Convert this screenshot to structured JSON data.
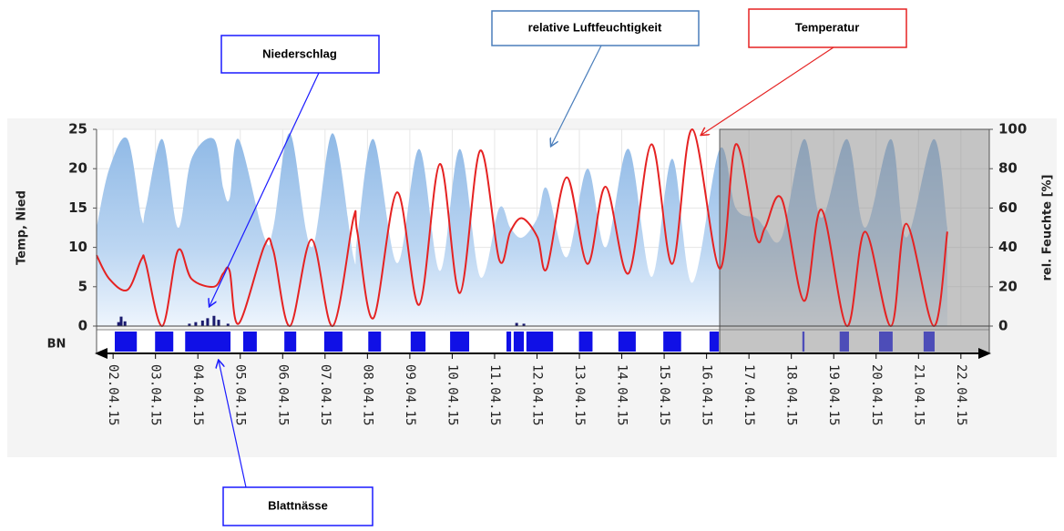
{
  "chart_data": {
    "type": "line",
    "y_label": "Temp, Nied",
    "y2_label": "rel. Feuchte [%]",
    "strip_label": "BN",
    "xlim": [
      -0.39,
      20.67
    ],
    "xticks": [
      {
        "value": 0,
        "label": "02.04.15"
      },
      {
        "value": 1,
        "label": "03.04.15"
      },
      {
        "value": 2,
        "label": "04.04.15"
      },
      {
        "value": 3,
        "label": "05.04.15"
      },
      {
        "value": 4,
        "label": "06.04.15"
      },
      {
        "value": 5,
        "label": "07.04.15"
      },
      {
        "value": 6,
        "label": "08.04.15"
      },
      {
        "value": 7,
        "label": "09.04.15"
      },
      {
        "value": 8,
        "label": "10.04.15"
      },
      {
        "value": 9,
        "label": "11.04.15"
      },
      {
        "value": 10,
        "label": "12.04.15"
      },
      {
        "value": 11,
        "label": "13.04.15"
      },
      {
        "value": 12,
        "label": "14.04.15"
      },
      {
        "value": 13,
        "label": "15.04.15"
      },
      {
        "value": 14,
        "label": "16.04.15"
      },
      {
        "value": 15,
        "label": "17.04.15"
      },
      {
        "value": 16,
        "label": "18.04.15"
      },
      {
        "value": 17,
        "label": "19.04.15"
      },
      {
        "value": 18,
        "label": "20.04.15"
      },
      {
        "value": 19,
        "label": "21.04.15"
      },
      {
        "value": 20,
        "label": "22.04.15"
      }
    ],
    "ylim": [
      0,
      25
    ],
    "yticks": [
      0,
      5,
      10,
      15,
      20,
      25
    ],
    "y2lim": [
      0,
      100
    ],
    "y2ticks": [
      0,
      20,
      40,
      60,
      80,
      100
    ],
    "grid": true,
    "shaded_x": [
      14.31,
      20.67
    ],
    "x": [
      -0.39,
      -0.09,
      0.34,
      0.67,
      0.77,
      1.16,
      1.53,
      1.85,
      2.38,
      2.6,
      2.75,
      2.96,
      3.57,
      3.78,
      4.17,
      4.68,
      5.18,
      5.67,
      5.76,
      6.14,
      6.7,
      7.22,
      7.71,
      8.18,
      8.66,
      9.11,
      9.37,
      9.65,
      10.01,
      10.23,
      10.7,
      11.19,
      11.62,
      12.16,
      12.7,
      13.19,
      13.66,
      14.31,
      14.69,
      15.17,
      15.38,
      15.77,
      16.3,
      16.71,
      17.31,
      17.74,
      18.35,
      18.71,
      19.36,
      19.68
    ],
    "series": [
      {
        "name": "Temperatur",
        "type": "line",
        "color": "#e52222",
        "values": [
          9,
          6,
          4.6,
          8.5,
          8,
          0,
          9.6,
          6,
          5,
          6.7,
          7,
          0.3,
          10.2,
          9.6,
          0,
          11,
          0,
          13.7,
          12,
          1,
          17,
          2.7,
          20.6,
          4.2,
          22.3,
          8.4,
          12,
          13.7,
          11.3,
          7.3,
          18.9,
          7.9,
          17.7,
          6.7,
          23.1,
          7.9,
          25,
          7.3,
          23.1,
          11.3,
          12.5,
          16.2,
          3.2,
          14.8,
          0,
          12,
          0,
          13,
          0,
          12
        ]
      },
      {
        "name": "relative Luftfeuchtigkeit",
        "type": "area",
        "axis": "y2",
        "color": "#9cc3ea",
        "values": [
          50,
          80,
          95,
          55,
          60,
          95,
          50,
          85,
          95,
          70,
          65,
          95,
          45,
          50,
          98,
          40,
          98,
          35,
          45,
          95,
          32,
          90,
          28,
          90,
          25,
          60,
          50,
          45,
          55,
          70,
          35,
          80,
          40,
          90,
          25,
          85,
          22,
          90,
          60,
          55,
          50,
          45,
          95,
          55,
          95,
          50,
          95,
          45,
          95,
          50
        ]
      },
      {
        "name": "Niederschlag",
        "type": "bar",
        "color": "#1a1a6e",
        "x": [
          0.13,
          0.19,
          0.28,
          1.8,
          1.95,
          2.11,
          2.23,
          2.38,
          2.49,
          2.71,
          9.52,
          9.69
        ],
        "values": [
          0.5,
          1.2,
          0.6,
          0.3,
          0.5,
          0.7,
          1.0,
          1.3,
          0.8,
          0.3,
          0.4,
          0.3
        ]
      },
      {
        "name": "Blattnässe",
        "type": "intervals",
        "color": "#1010e6",
        "intervals": [
          [
            0.04,
            0.56
          ],
          [
            0.99,
            1.42
          ],
          [
            1.7,
            2.77
          ],
          [
            3.07,
            3.39
          ],
          [
            4.04,
            4.32
          ],
          [
            4.98,
            5.41
          ],
          [
            6.02,
            6.32
          ],
          [
            7.02,
            7.37
          ],
          [
            7.95,
            8.4
          ],
          [
            9.28,
            9.39
          ],
          [
            9.45,
            9.69
          ],
          [
            9.75,
            10.38
          ],
          [
            10.99,
            11.31
          ],
          [
            11.92,
            12.33
          ],
          [
            12.98,
            13.4
          ],
          [
            14.07,
            14.29
          ],
          [
            16.26,
            16.31
          ],
          [
            17.14,
            17.36
          ],
          [
            18.07,
            18.39
          ],
          [
            19.12,
            19.38
          ]
        ]
      }
    ]
  }
}
